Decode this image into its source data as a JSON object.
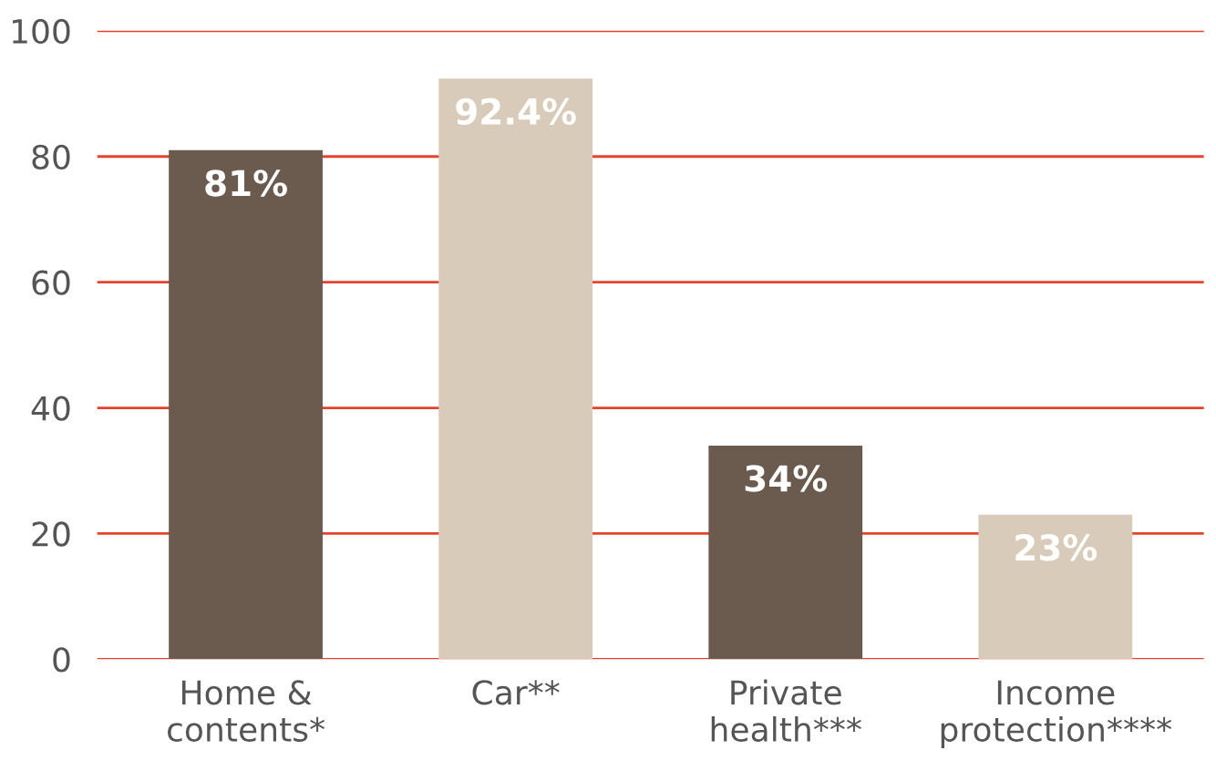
{
  "chart_data": {
    "type": "bar",
    "categories": [
      "Home &\ncontents*",
      "Car**",
      "Private\nhealth***",
      "Income\nprotection****"
    ],
    "values": [
      81,
      92.4,
      34,
      23
    ],
    "colors": [
      "#6b5a4e",
      "#d9cbb9",
      "#6b5a4e",
      "#d9cbb9"
    ],
    "value_labels": [
      "81%",
      "92.4%",
      "34%",
      "23%"
    ],
    "ylim": [
      0,
      100
    ],
    "yticks": [
      0,
      20,
      40,
      60,
      80,
      100
    ],
    "grid": "y",
    "legend": false
  }
}
